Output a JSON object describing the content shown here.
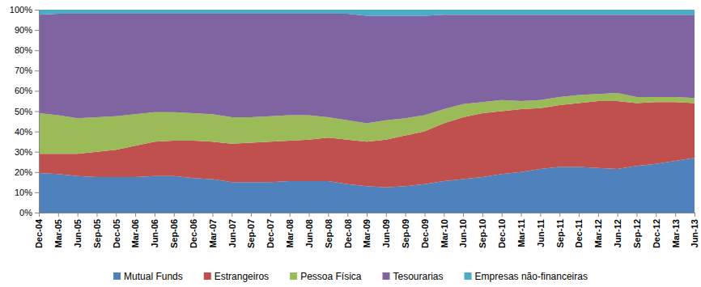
{
  "chart_data": {
    "type": "area",
    "stacked": true,
    "legend": "bottom",
    "categories": [
      "Dec-04",
      "Mar-05",
      "Jun-05",
      "Sep-05",
      "Dec-05",
      "Mar-06",
      "Jun-06",
      "Sep-06",
      "Dec-06",
      "Mar-07",
      "Jun-07",
      "Sep-07",
      "Dec-07",
      "Mar-08",
      "Jun-08",
      "Sep-08",
      "Dec-08",
      "Mar-09",
      "Jun-09",
      "Sep-09",
      "Dec-09",
      "Mar-10",
      "Jun-10",
      "Sep-10",
      "Dec-10",
      "Mar-11",
      "Jun-11",
      "Sep-11",
      "Dec-11",
      "Mar-12",
      "Jun-12",
      "Sep-12",
      "Dec-12",
      "Mar-13",
      "Jun-13"
    ],
    "series": [
      {
        "name": "Mutual Funds",
        "color": "#4f81bd",
        "values": [
          19.5,
          19,
          18,
          17.5,
          17.5,
          17.5,
          18,
          18,
          17,
          16.5,
          15,
          15,
          15,
          15.5,
          15.5,
          15.5,
          14,
          13,
          12.5,
          13,
          14,
          15.5,
          16.5,
          17.5,
          19,
          20,
          21.5,
          22.5,
          22.5,
          22,
          21.5,
          23,
          24,
          25.5,
          27
        ]
      },
      {
        "name": "Estrangeiros",
        "color": "#c0504d",
        "values": [
          9.5,
          10,
          11,
          12.5,
          13.5,
          15.5,
          17,
          17.5,
          18.5,
          18.5,
          19,
          19.5,
          20,
          20,
          20.5,
          21.5,
          22,
          22,
          23.5,
          25,
          26,
          28.5,
          30.5,
          31.5,
          31,
          31,
          30,
          30.5,
          31.5,
          33,
          33.5,
          31,
          30.5,
          29,
          27
        ]
      },
      {
        "name": "Pessoa Física",
        "color": "#9bbb59",
        "values": [
          20,
          19,
          17.5,
          17,
          16.5,
          15.5,
          14.5,
          14,
          13.5,
          13.5,
          13,
          12.5,
          12.5,
          12.5,
          12,
          10,
          9.5,
          9,
          9.5,
          8.5,
          8,
          7,
          6.5,
          5.5,
          5.5,
          4,
          4,
          4,
          4,
          3.5,
          4,
          3,
          2.5,
          2.5,
          2.5
        ]
      },
      {
        "name": "Tesourarias",
        "color": "#8064a2",
        "values": [
          48.5,
          50,
          51.5,
          51,
          50.5,
          49.5,
          48.5,
          48.5,
          49,
          49.5,
          51,
          51,
          50.5,
          50,
          50,
          51,
          52.5,
          53,
          51.5,
          50.5,
          49,
          46.5,
          44,
          43,
          42,
          42.5,
          42,
          40.5,
          39.5,
          39,
          38.5,
          40.5,
          40.5,
          40.5,
          41
        ]
      },
      {
        "name": "Empresas não-financeiras",
        "color": "#4bacc6",
        "values": [
          2.5,
          2,
          2,
          2,
          2,
          2,
          2,
          2,
          2,
          2,
          2,
          2,
          2,
          2,
          2,
          2,
          2,
          3,
          3,
          3,
          3,
          2.5,
          2.5,
          2.5,
          2.5,
          2.5,
          2.5,
          2.5,
          2.5,
          2.5,
          2.5,
          2.5,
          2.5,
          2.5,
          2.5
        ]
      }
    ],
    "ylim": [
      0,
      100
    ],
    "yticks": [
      {
        "value": 0,
        "label": "0%"
      },
      {
        "value": 10,
        "label": "10%"
      },
      {
        "value": 20,
        "label": "20%"
      },
      {
        "value": 30,
        "label": "30%"
      },
      {
        "value": 40,
        "label": "40%"
      },
      {
        "value": 50,
        "label": "50%"
      },
      {
        "value": 60,
        "label": "60%"
      },
      {
        "value": 70,
        "label": "70%"
      },
      {
        "value": 80,
        "label": "80%"
      },
      {
        "value": 90,
        "label": "90%"
      },
      {
        "value": 100,
        "label": "100%"
      }
    ]
  }
}
